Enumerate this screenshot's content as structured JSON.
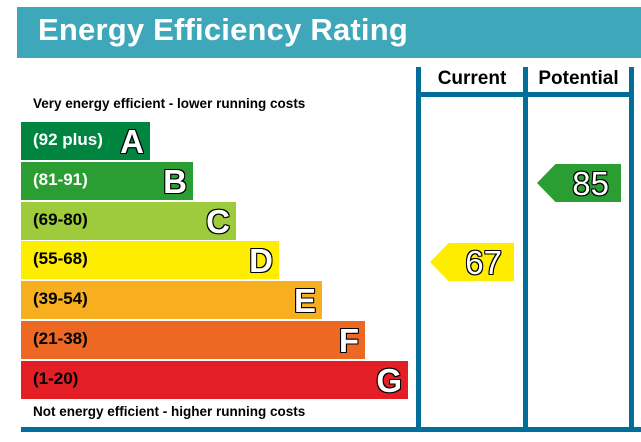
{
  "chart_data": {
    "type": "bar",
    "title": "Energy Efficiency Rating",
    "columns": [
      "Current",
      "Potential"
    ],
    "top_note": "Very energy efficient - lower running costs",
    "bottom_note": "Not energy efficient - higher running costs",
    "bands": [
      {
        "letter": "A",
        "range": "(92 plus)",
        "color": "#008540",
        "text_color": "#ffffff"
      },
      {
        "letter": "B",
        "range": "(81-91)",
        "color": "#2a9e33",
        "text_color": "#ffffff"
      },
      {
        "letter": "C",
        "range": "(69-80)",
        "color": "#9dcb3c",
        "text_color": "#000000"
      },
      {
        "letter": "D",
        "range": "(55-68)",
        "color": "#ffed00",
        "text_color": "#000000"
      },
      {
        "letter": "E",
        "range": "(39-54)",
        "color": "#f7af1f",
        "text_color": "#000000"
      },
      {
        "letter": "F",
        "range": "(21-38)",
        "color": "#ed6823",
        "text_color": "#000000"
      },
      {
        "letter": "G",
        "range": "(1-20)",
        "color": "#e31e24",
        "text_color": "#000000"
      }
    ],
    "current": {
      "value": "67",
      "band": "D",
      "color": "#ffed00"
    },
    "potential": {
      "value": "85",
      "band": "B",
      "color": "#2a9e33"
    }
  }
}
